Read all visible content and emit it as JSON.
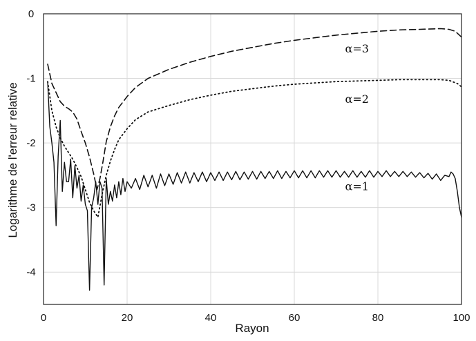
{
  "chart_data": {
    "type": "line",
    "title": "",
    "xlabel": "Rayon",
    "ylabel": "Logarithme de l'erreur relative",
    "xlim": [
      0,
      100
    ],
    "ylim": [
      -4.5,
      0
    ],
    "xticks": [
      0,
      20,
      40,
      60,
      80,
      100
    ],
    "xtick_labels": [
      "0",
      "20",
      "40",
      "60",
      "80",
      "100"
    ],
    "yticks": [
      0,
      -1,
      -2,
      -3,
      -4
    ],
    "ytick_labels": [
      "0",
      "-1",
      "-2",
      "-3",
      "-4"
    ],
    "grid": true,
    "legend": "none",
    "series": [
      {
        "name": "α=3",
        "style": "dashed",
        "label_at": [
          75,
          -0.6
        ],
        "x": [
          1,
          2,
          3,
          4,
          5,
          6,
          7,
          8,
          9,
          10,
          11,
          12,
          12.8,
          13.5,
          14.2,
          15,
          16,
          17,
          18,
          20,
          22,
          25,
          30,
          35,
          40,
          45,
          50,
          55,
          60,
          65,
          70,
          75,
          80,
          85,
          90,
          95,
          97,
          98.5,
          100
        ],
        "y": [
          -0.78,
          -1.08,
          -1.22,
          -1.36,
          -1.43,
          -1.47,
          -1.52,
          -1.63,
          -1.82,
          -2.0,
          -2.22,
          -2.48,
          -2.72,
          -2.55,
          -2.3,
          -1.98,
          -1.75,
          -1.58,
          -1.45,
          -1.28,
          -1.14,
          -1.0,
          -0.86,
          -0.75,
          -0.66,
          -0.58,
          -0.52,
          -0.46,
          -0.41,
          -0.37,
          -0.33,
          -0.3,
          -0.27,
          -0.25,
          -0.24,
          -0.23,
          -0.24,
          -0.27,
          -0.36
        ]
      },
      {
        "name": "α=2",
        "style": "dotted",
        "label_at": [
          75,
          -1.38
        ],
        "x": [
          1,
          2,
          3,
          4,
          5,
          6,
          7,
          8,
          9,
          10,
          11,
          12,
          13,
          14,
          15,
          16,
          17,
          18,
          20,
          22,
          25,
          30,
          35,
          40,
          45,
          50,
          55,
          60,
          65,
          70,
          75,
          80,
          85,
          90,
          95,
          97,
          99,
          100
        ],
        "y": [
          -1.05,
          -1.5,
          -1.75,
          -1.92,
          -2.05,
          -2.15,
          -2.25,
          -2.38,
          -2.52,
          -2.72,
          -2.92,
          -3.05,
          -3.15,
          -2.8,
          -2.5,
          -2.28,
          -2.1,
          -1.95,
          -1.78,
          -1.64,
          -1.52,
          -1.42,
          -1.33,
          -1.26,
          -1.2,
          -1.16,
          -1.12,
          -1.09,
          -1.07,
          -1.05,
          -1.04,
          -1.03,
          -1.02,
          -1.02,
          -1.02,
          -1.03,
          -1.08,
          -1.13
        ]
      },
      {
        "name": "α=1",
        "style": "solid",
        "label_at": [
          75,
          -2.73
        ],
        "x": [
          1,
          1.5,
          2,
          2.5,
          3,
          3.5,
          4,
          4.5,
          5,
          5.5,
          6,
          6.5,
          7,
          7.5,
          8,
          8.5,
          9,
          9.5,
          10,
          10.5,
          11,
          11.5,
          12,
          12.5,
          13,
          13.5,
          14,
          14.5,
          15,
          15.5,
          16,
          16.5,
          17,
          17.5,
          18,
          18.5,
          19,
          19.5,
          20,
          21,
          22,
          23,
          24,
          25,
          26,
          27,
          28,
          29,
          30,
          31,
          32,
          33,
          34,
          35,
          36,
          37,
          38,
          39,
          40,
          41,
          42,
          43,
          44,
          45,
          46,
          47,
          48,
          49,
          50,
          51,
          52,
          53,
          54,
          55,
          56,
          57,
          58,
          59,
          60,
          61,
          62,
          63,
          64,
          65,
          66,
          67,
          68,
          69,
          70,
          71,
          72,
          73,
          74,
          75,
          76,
          77,
          78,
          79,
          80,
          81,
          82,
          83,
          84,
          85,
          86,
          87,
          88,
          89,
          90,
          91,
          92,
          93,
          94,
          95,
          96,
          97,
          97.5,
          98,
          98.5,
          99,
          99.5,
          100
        ],
        "y": [
          -1.05,
          -1.75,
          -2.0,
          -2.3,
          -3.28,
          -2.2,
          -1.65,
          -2.75,
          -2.3,
          -2.6,
          -2.6,
          -2.25,
          -2.85,
          -2.35,
          -2.7,
          -2.5,
          -2.9,
          -2.65,
          -2.95,
          -3.05,
          -4.28,
          -3.0,
          -2.85,
          -2.6,
          -2.95,
          -2.6,
          -2.7,
          -4.2,
          -2.55,
          -2.95,
          -2.75,
          -2.9,
          -2.65,
          -2.85,
          -2.6,
          -2.8,
          -2.55,
          -2.75,
          -2.6,
          -2.7,
          -2.55,
          -2.72,
          -2.5,
          -2.68,
          -2.5,
          -2.7,
          -2.48,
          -2.66,
          -2.48,
          -2.64,
          -2.46,
          -2.62,
          -2.45,
          -2.62,
          -2.46,
          -2.6,
          -2.45,
          -2.6,
          -2.46,
          -2.58,
          -2.45,
          -2.58,
          -2.45,
          -2.57,
          -2.44,
          -2.57,
          -2.45,
          -2.56,
          -2.44,
          -2.56,
          -2.44,
          -2.55,
          -2.44,
          -2.55,
          -2.43,
          -2.55,
          -2.44,
          -2.54,
          -2.43,
          -2.54,
          -2.43,
          -2.54,
          -2.43,
          -2.54,
          -2.43,
          -2.53,
          -2.43,
          -2.53,
          -2.43,
          -2.53,
          -2.44,
          -2.53,
          -2.43,
          -2.53,
          -2.44,
          -2.53,
          -2.43,
          -2.53,
          -2.44,
          -2.52,
          -2.43,
          -2.52,
          -2.44,
          -2.52,
          -2.44,
          -2.52,
          -2.45,
          -2.53,
          -2.46,
          -2.54,
          -2.47,
          -2.56,
          -2.48,
          -2.58,
          -2.5,
          -2.52,
          -2.45,
          -2.48,
          -2.55,
          -2.75,
          -3.0,
          -3.15
        ]
      }
    ]
  }
}
